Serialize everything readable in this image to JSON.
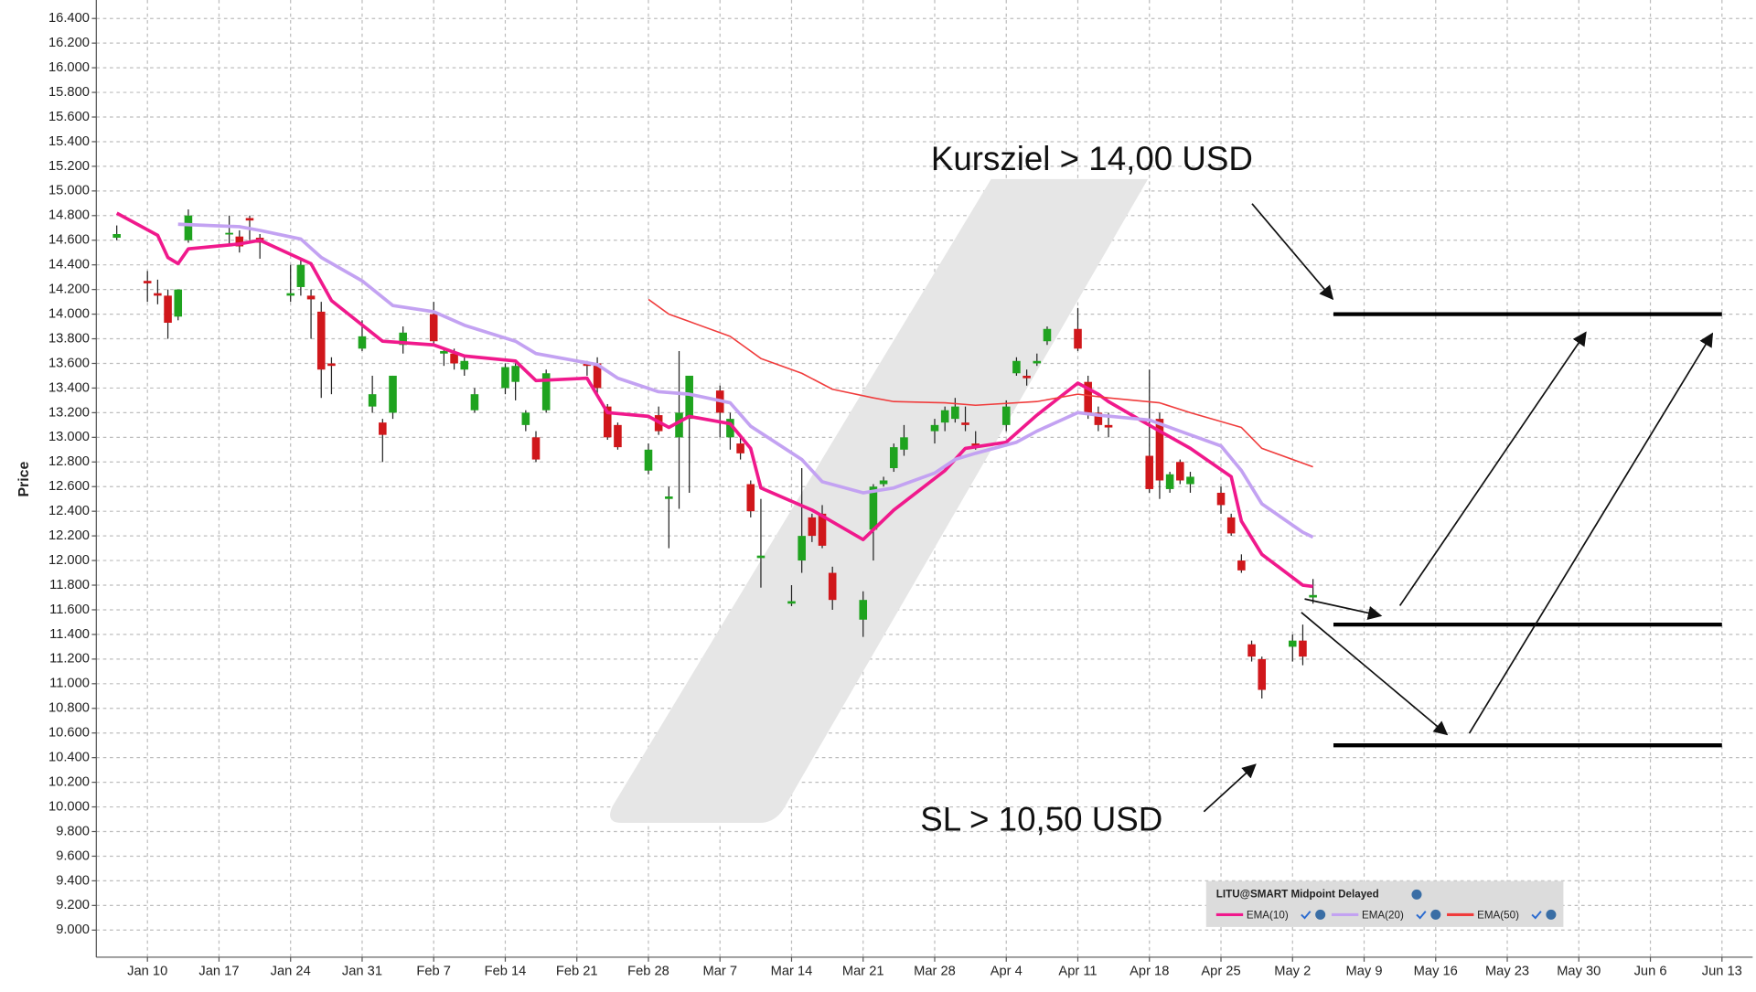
{
  "chart_data": {
    "type": "candlestick",
    "ylabel": "Price",
    "legend_title": "LITU@SMART Midpoint Delayed",
    "grid": true,
    "xlim": [
      "Jan 5",
      "Jun 16"
    ],
    "xticks": [
      "Jan 10",
      "Jan 17",
      "Jan 24",
      "Jan 31",
      "Feb 7",
      "Feb 14",
      "Feb 21",
      "Feb 28",
      "Mar 7",
      "Mar 14",
      "Mar 21",
      "Mar 28",
      "Apr 4",
      "Apr 11",
      "Apr 18",
      "Apr 25",
      "May 2",
      "May 9",
      "May 16",
      "May 23",
      "May 30",
      "Jun 6",
      "Jun 13"
    ],
    "ylim": [
      8.78,
      16.55
    ],
    "yticks": [
      {
        "value": 9,
        "label": "9.000"
      },
      {
        "value": 9.2,
        "label": "9.200"
      },
      {
        "value": 9.4,
        "label": "9.400"
      },
      {
        "value": 9.6,
        "label": "9.600"
      },
      {
        "value": 9.8,
        "label": "9.800"
      },
      {
        "value": 10,
        "label": "10.000"
      },
      {
        "value": 10.2,
        "label": "10.200"
      },
      {
        "value": 10.4,
        "label": "10.400"
      },
      {
        "value": 10.6,
        "label": "10.600"
      },
      {
        "value": 10.8,
        "label": "10.800"
      },
      {
        "value": 11,
        "label": "11.000"
      },
      {
        "value": 11.2,
        "label": "11.200"
      },
      {
        "value": 11.4,
        "label": "11.400"
      },
      {
        "value": 11.6,
        "label": "11.600"
      },
      {
        "value": 11.8,
        "label": "11.800"
      },
      {
        "value": 12,
        "label": "12.000"
      },
      {
        "value": 12.2,
        "label": "12.200"
      },
      {
        "value": 12.4,
        "label": "12.400"
      },
      {
        "value": 12.6,
        "label": "12.600"
      },
      {
        "value": 12.8,
        "label": "12.800"
      },
      {
        "value": 13,
        "label": "13.000"
      },
      {
        "value": 13.2,
        "label": "13.200"
      },
      {
        "value": 13.4,
        "label": "13.400"
      },
      {
        "value": 13.6,
        "label": "13.600"
      },
      {
        "value": 13.8,
        "label": "13.800"
      },
      {
        "value": 14,
        "label": "14.000"
      },
      {
        "value": 14.2,
        "label": "14.200"
      },
      {
        "value": 14.4,
        "label": "14.400"
      },
      {
        "value": 14.6,
        "label": "14.600"
      },
      {
        "value": 14.8,
        "label": "14.800"
      },
      {
        "value": 15,
        "label": "15.000"
      },
      {
        "value": 15.2,
        "label": "15.200"
      },
      {
        "value": 15.4,
        "label": "15.400"
      },
      {
        "value": 15.6,
        "label": "15.600"
      },
      {
        "value": 15.8,
        "label": "15.800"
      },
      {
        "value": 16,
        "label": "16.000"
      },
      {
        "value": 16.2,
        "label": "16.200"
      },
      {
        "value": 16.4,
        "label": "16.400"
      }
    ],
    "up_color": "#1fa31f",
    "down_color": "#d0171b",
    "candles": {
      "x": [
        "Jan 7",
        "Jan 10",
        "Jan 11",
        "Jan 12",
        "Jan 13",
        "Jan 14",
        "Jan 18",
        "Jan 19",
        "Jan 20",
        "Jan 21",
        "Jan 24",
        "Jan 25",
        "Jan 26",
        "Jan 27",
        "Jan 28",
        "Jan 31",
        "Feb 1",
        "Feb 2",
        "Feb 3",
        "Feb 4",
        "Feb 7",
        "Feb 8",
        "Feb 9",
        "Feb 10",
        "Feb 11",
        "Feb 14",
        "Feb 15",
        "Feb 16",
        "Feb 17",
        "Feb 18",
        "Feb 22",
        "Feb 23",
        "Feb 24",
        "Feb 25",
        "Feb 28",
        "Mar 1",
        "Mar 2",
        "Mar 3",
        "Mar 4",
        "Mar 7",
        "Mar 8",
        "Mar 9",
        "Mar 10",
        "Mar 11",
        "Mar 14",
        "Mar 15",
        "Mar 16",
        "Mar 17",
        "Mar 18",
        "Mar 21",
        "Mar 22",
        "Mar 23",
        "Mar 24",
        "Mar 25",
        "Mar 28",
        "Mar 29",
        "Mar 30",
        "Mar 31",
        "Apr 1",
        "Apr 4",
        "Apr 5",
        "Apr 6",
        "Apr 7",
        "Apr 8",
        "Apr 11",
        "Apr 12",
        "Apr 13",
        "Apr 14",
        "Apr 18",
        "Apr 19",
        "Apr 20",
        "Apr 21",
        "Apr 22",
        "Apr 25",
        "Apr 26",
        "Apr 27",
        "Apr 28",
        "Apr 29",
        "May 2",
        "May 3",
        "May 4"
      ],
      "open": [
        14.62,
        14.27,
        14.17,
        14.15,
        13.98,
        14.6,
        14.65,
        14.63,
        14.78,
        14.62,
        14.15,
        14.22,
        14.15,
        14.02,
        13.6,
        13.72,
        13.25,
        13.12,
        13.2,
        13.75,
        14.0,
        13.68,
        13.68,
        13.55,
        13.22,
        13.4,
        13.45,
        13.1,
        13.0,
        13.22,
        13.6,
        13.6,
        13.25,
        13.1,
        12.73,
        13.18,
        12.5,
        13.0,
        13.15,
        13.38,
        13.0,
        12.95,
        12.62,
        12.02,
        11.65,
        12.0,
        12.35,
        12.38,
        11.9,
        11.52,
        12.25,
        12.62,
        12.75,
        12.9,
        13.05,
        13.12,
        13.15,
        13.12,
        12.95,
        13.1,
        13.52,
        13.5,
        13.6,
        13.78,
        13.88,
        13.45,
        13.2,
        13.1,
        12.85,
        13.15,
        12.58,
        12.8,
        12.62,
        12.55,
        12.35,
        12.0,
        11.32,
        11.2,
        11.3,
        11.35,
        11.7
      ],
      "high": [
        14.72,
        14.35,
        14.28,
        14.2,
        14.2,
        14.85,
        14.8,
        14.68,
        14.8,
        14.65,
        14.4,
        14.45,
        14.2,
        14.1,
        13.65,
        13.95,
        13.5,
        13.15,
        13.5,
        13.9,
        14.1,
        13.72,
        13.72,
        13.65,
        13.4,
        13.6,
        13.6,
        13.22,
        13.05,
        13.55,
        13.62,
        13.65,
        13.27,
        13.12,
        12.95,
        13.25,
        12.6,
        13.7,
        13.5,
        13.42,
        13.2,
        13.0,
        12.65,
        12.5,
        11.8,
        12.75,
        12.38,
        12.45,
        11.95,
        11.75,
        12.62,
        12.68,
        12.95,
        13.1,
        13.15,
        13.25,
        13.32,
        13.25,
        13.05,
        13.3,
        13.65,
        13.55,
        13.68,
        13.9,
        14.05,
        13.5,
        13.25,
        13.2,
        13.55,
        13.2,
        12.72,
        12.82,
        12.72,
        12.6,
        12.38,
        12.05,
        11.35,
        11.22,
        11.4,
        11.48,
        11.85
      ],
      "low": [
        14.6,
        14.1,
        14.08,
        13.8,
        13.95,
        14.58,
        14.55,
        14.5,
        14.6,
        14.45,
        14.1,
        14.15,
        13.8,
        13.32,
        13.35,
        13.7,
        13.2,
        12.8,
        13.15,
        13.68,
        13.75,
        13.58,
        13.55,
        13.5,
        13.2,
        13.35,
        13.3,
        13.05,
        12.8,
        13.2,
        13.5,
        13.35,
        12.98,
        12.9,
        12.7,
        13.02,
        12.1,
        12.42,
        12.55,
        13.0,
        12.9,
        12.82,
        12.35,
        11.78,
        11.63,
        11.9,
        12.15,
        12.1,
        11.6,
        11.38,
        12.0,
        12.6,
        12.72,
        12.85,
        12.95,
        13.05,
        13.12,
        13.05,
        12.9,
        13.05,
        13.5,
        13.42,
        13.58,
        13.75,
        13.7,
        13.15,
        13.05,
        13.0,
        12.55,
        12.5,
        12.55,
        12.62,
        12.55,
        12.38,
        12.2,
        11.9,
        11.18,
        10.88,
        11.18,
        11.15,
        11.65
      ],
      "close": [
        14.65,
        14.25,
        14.15,
        13.93,
        14.2,
        14.8,
        14.66,
        14.55,
        14.76,
        14.58,
        14.17,
        14.4,
        14.12,
        13.55,
        13.58,
        13.82,
        13.35,
        13.02,
        13.5,
        13.85,
        13.78,
        13.7,
        13.6,
        13.62,
        13.35,
        13.57,
        13.58,
        13.2,
        12.82,
        13.52,
        13.58,
        13.4,
        13.0,
        12.92,
        12.9,
        13.05,
        12.52,
        13.2,
        13.5,
        13.2,
        13.15,
        12.87,
        12.4,
        12.04,
        11.67,
        12.2,
        12.2,
        12.12,
        11.68,
        11.68,
        12.6,
        12.65,
        12.92,
        13.0,
        13.1,
        13.22,
        13.25,
        13.1,
        12.92,
        13.25,
        13.62,
        13.48,
        13.62,
        13.88,
        13.72,
        13.2,
        13.1,
        13.08,
        12.58,
        12.65,
        12.7,
        12.65,
        12.68,
        12.45,
        12.22,
        11.92,
        11.22,
        10.95,
        11.35,
        11.22,
        11.72
      ]
    },
    "series": [
      {
        "name": "EMA(10)",
        "color": "#f0198c",
        "width": 3,
        "x": [
          "Jan 7",
          "Jan 11",
          "Jan 12",
          "Jan 13",
          "Jan 14",
          "Jan 19",
          "Jan 21",
          "Jan 26",
          "Jan 28",
          "Feb 2",
          "Feb 7",
          "Feb 10",
          "Feb 15",
          "Feb 17",
          "Feb 22",
          "Feb 24",
          "Feb 28",
          "Mar 2",
          "Mar 4",
          "Mar 8",
          "Mar 10",
          "Mar 11",
          "Mar 16",
          "Mar 21",
          "Mar 24",
          "Mar 29",
          "Mar 31",
          "Apr 4",
          "Apr 7",
          "Apr 11",
          "Apr 13",
          "Apr 14",
          "Apr 19",
          "Apr 22",
          "Apr 26",
          "Apr 27",
          "Apr 29",
          "May 3",
          "May 4"
        ],
        "values": [
          14.82,
          14.64,
          14.46,
          14.41,
          14.53,
          14.57,
          14.6,
          14.41,
          14.11,
          13.78,
          13.75,
          13.66,
          13.62,
          13.46,
          13.48,
          13.2,
          13.17,
          13.08,
          13.17,
          13.11,
          12.91,
          12.59,
          12.41,
          12.17,
          12.41,
          12.73,
          12.91,
          12.96,
          13.18,
          13.44,
          13.35,
          13.29,
          13.05,
          12.91,
          12.68,
          12.32,
          12.05,
          11.8,
          11.79
        ]
      },
      {
        "name": "EMA(20)",
        "color": "#c3a2f2",
        "width": 3,
        "x": [
          "Jan 13",
          "Jan 19",
          "Jan 21",
          "Jan 25",
          "Jan 27",
          "Jan 31",
          "Feb 3",
          "Feb 7",
          "Feb 10",
          "Feb 15",
          "Feb 17",
          "Feb 23",
          "Feb 25",
          "Mar 1",
          "Mar 4",
          "Mar 8",
          "Mar 10",
          "Mar 15",
          "Mar 17",
          "Mar 21",
          "Mar 24",
          "Mar 28",
          "Mar 30",
          "Apr 1",
          "Apr 5",
          "Apr 7",
          "Apr 11",
          "Apr 13",
          "Apr 18",
          "Apr 21",
          "Apr 25",
          "Apr 27",
          "Apr 29",
          "May 3",
          "May 4"
        ],
        "values": [
          14.73,
          14.71,
          14.68,
          14.61,
          14.46,
          14.27,
          14.07,
          14.02,
          13.91,
          13.78,
          13.68,
          13.59,
          13.48,
          13.37,
          13.35,
          13.28,
          13.09,
          12.82,
          12.64,
          12.55,
          12.59,
          12.71,
          12.82,
          12.87,
          12.96,
          13.05,
          13.2,
          13.18,
          13.14,
          13.05,
          12.93,
          12.73,
          12.46,
          12.23,
          12.19
        ]
      },
      {
        "name": "EMA(50)",
        "color": "#f03c3c",
        "width": 1.3,
        "x": [
          "Feb 28",
          "Mar 2",
          "Mar 4",
          "Mar 8",
          "Mar 11",
          "Mar 15",
          "Mar 18",
          "Mar 22",
          "Mar 24",
          "Mar 29",
          "Apr 1",
          "Apr 7",
          "Apr 11",
          "Apr 14",
          "Apr 19",
          "Apr 22",
          "Apr 27",
          "Apr 29",
          "May 4"
        ],
        "values": [
          14.12,
          14.0,
          13.94,
          13.82,
          13.64,
          13.52,
          13.39,
          13.32,
          13.29,
          13.28,
          13.26,
          13.29,
          13.35,
          13.32,
          13.28,
          13.2,
          13.08,
          12.91,
          12.76
        ]
      }
    ],
    "levels": [
      {
        "value": 14.0,
        "from": "May 6",
        "to": "Jun 13"
      },
      {
        "value": 11.48,
        "from": "May 6",
        "to": "Jun 13"
      },
      {
        "value": 10.5,
        "from": "May 6",
        "to": "Jun 13"
      }
    ],
    "annotations": [
      "Kursziel > 14,00 USD",
      "SL > 10,50 USD"
    ]
  }
}
